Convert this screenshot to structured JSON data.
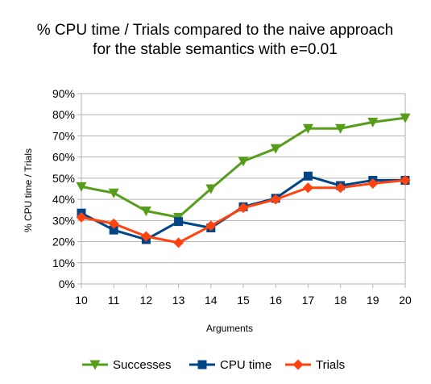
{
  "chart_data": {
    "type": "line",
    "title_lines": [
      "% CPU time / Trials compared to the naive approach",
      "for the stable semantics with e=0.01"
    ],
    "xlabel": "Arguments",
    "ylabel": "% CPU time / Trials",
    "x": [
      10,
      11,
      12,
      13,
      14,
      15,
      16,
      17,
      18,
      19,
      20
    ],
    "ylim": [
      0,
      90
    ],
    "y_ticks": [
      "0%",
      "10%",
      "20%",
      "30%",
      "40%",
      "50%",
      "60%",
      "70%",
      "80%",
      "90%"
    ],
    "grid": true,
    "legend_position": "bottom",
    "series": [
      {
        "name": "Successes",
        "color": "#579D1C",
        "marker": "triangle-down",
        "values": [
          46,
          43,
          34.5,
          31.5,
          45,
          58,
          64,
          73.5,
          73.5,
          76.5,
          78.5
        ]
      },
      {
        "name": "CPU time",
        "color": "#004586",
        "marker": "square",
        "values": [
          33.5,
          25.5,
          21,
          29.5,
          26.5,
          36.5,
          40.5,
          51,
          46.5,
          49,
          49
        ]
      },
      {
        "name": "Trials",
        "color": "#FF420E",
        "marker": "diamond",
        "values": [
          31.5,
          28.5,
          22.5,
          19.5,
          27.5,
          36,
          40,
          45.5,
          45.5,
          47.5,
          49
        ]
      }
    ]
  }
}
